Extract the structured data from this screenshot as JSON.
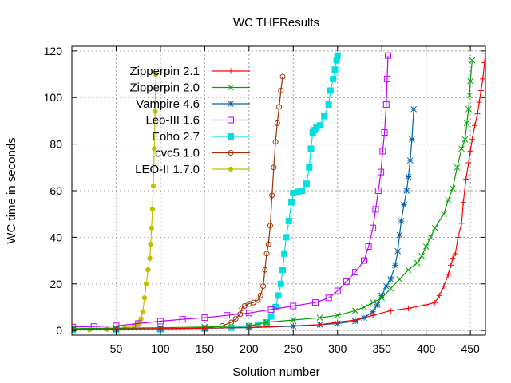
{
  "chart_data": {
    "type": "line",
    "title": "WC THFResults",
    "xlabel": "Solution number",
    "ylabel": "WC time in seconds",
    "xlim": [
      0,
      467
    ],
    "ylim": [
      -2,
      122
    ],
    "xticks": [
      50,
      100,
      150,
      200,
      250,
      300,
      350,
      400,
      450
    ],
    "yticks": [
      0,
      20,
      40,
      60,
      80,
      100,
      120
    ],
    "grid": true,
    "legend_position": "top-left",
    "series": [
      {
        "name": "Zipperpin 2.1",
        "color": "#ff0000",
        "marker": "plus",
        "x": [
          1,
          50,
          100,
          150,
          200,
          250,
          280,
          300,
          320,
          340,
          360,
          380,
          400,
          410,
          415,
          420,
          425,
          428,
          430,
          433,
          436,
          440,
          442,
          445,
          448,
          450,
          452,
          455,
          458,
          460,
          462,
          464,
          466,
          467
        ],
        "y": [
          0.5,
          0.6,
          0.8,
          1.0,
          1.3,
          2.0,
          2.5,
          3.5,
          4.5,
          6.5,
          8.5,
          9.5,
          11,
          12,
          15,
          19,
          24,
          28,
          31,
          33,
          40,
          46,
          55,
          65,
          72,
          77,
          82,
          88,
          93,
          98,
          103,
          108,
          115,
          119
        ]
      },
      {
        "name": "Zipperpin 2.0",
        "color": "#00a000",
        "marker": "x",
        "x": [
          1,
          50,
          100,
          150,
          200,
          220,
          250,
          280,
          300,
          320,
          330,
          340,
          350,
          360,
          370,
          380,
          390,
          395,
          400,
          405,
          410,
          420,
          425,
          430,
          435,
          440,
          444,
          446,
          448,
          449,
          450,
          452
        ],
        "y": [
          0.8,
          1.0,
          1.2,
          1.5,
          2.0,
          3.5,
          4.5,
          5.5,
          6.5,
          8.5,
          10,
          12,
          14,
          18,
          22,
          26,
          29,
          32,
          36,
          40,
          44,
          50,
          56,
          61,
          70,
          78,
          82,
          89,
          95,
          101,
          107,
          116
        ]
      },
      {
        "name": "Vampire 4.6",
        "color": "#0060ad",
        "marker": "star",
        "x": [
          1,
          50,
          100,
          150,
          200,
          250,
          280,
          300,
          320,
          330,
          340,
          345,
          350,
          355,
          360,
          365,
          368,
          370,
          372,
          375,
          378,
          380,
          382,
          384,
          386
        ],
        "y": [
          0.6,
          0.7,
          0.8,
          1.0,
          1.2,
          1.8,
          2.5,
          3.0,
          4.0,
          5.5,
          8,
          11,
          15,
          19,
          22,
          28,
          34,
          41,
          47,
          54,
          60,
          66,
          73,
          82,
          95
        ]
      },
      {
        "name": "Leo-III 1.6",
        "color": "#c000ff",
        "marker": "square",
        "x": [
          1,
          25,
          50,
          75,
          100,
          125,
          150,
          175,
          200,
          225,
          250,
          275,
          290,
          300,
          310,
          320,
          330,
          335,
          340,
          343,
          346,
          349,
          351,
          353,
          355,
          356,
          357
        ],
        "y": [
          1.5,
          1.7,
          2.0,
          3.0,
          4.0,
          4.8,
          5.5,
          6.5,
          7.5,
          9.0,
          10.5,
          12,
          14,
          17,
          21,
          25,
          30,
          36,
          44,
          52,
          60,
          68,
          77,
          85,
          97,
          108,
          118
        ]
      },
      {
        "name": "Eoho 2.7",
        "color": "#00e0e0",
        "marker": "filled-square",
        "x": [
          1,
          50,
          100,
          150,
          180,
          200,
          210,
          220,
          225,
          230,
          233,
          236,
          238,
          240,
          242,
          245,
          248,
          250,
          255,
          260,
          265,
          268,
          270,
          272,
          274,
          276,
          280,
          285,
          290,
          292,
          295,
          297,
          299,
          300
        ],
        "y": [
          0.3,
          0.4,
          0.5,
          0.8,
          1.2,
          1.8,
          2.5,
          3.5,
          6,
          10,
          15,
          20,
          26,
          33,
          40,
          47,
          55,
          59,
          59.5,
          60,
          63,
          70,
          78,
          85,
          86,
          87,
          88,
          92,
          97,
          103,
          108,
          112,
          116,
          118
        ]
      },
      {
        "name": "cvc5 1.0",
        "color": "#a03000",
        "marker": "circle",
        "x": [
          1,
          50,
          100,
          150,
          170,
          180,
          185,
          190,
          192,
          195,
          200,
          205,
          210,
          213,
          216,
          218,
          220,
          222,
          224,
          226,
          228,
          230,
          232,
          234,
          236,
          238
        ],
        "y": [
          0.3,
          0.4,
          0.6,
          1.0,
          2,
          3.5,
          5,
          7,
          9.5,
          10.5,
          11.5,
          12,
          13,
          15,
          19,
          26,
          33,
          37,
          45,
          58,
          70,
          81,
          89,
          96,
          103,
          109
        ]
      },
      {
        "name": "LEO-II 1.7.0",
        "color": "#c0c000",
        "marker": "filled-circle",
        "x": [
          1,
          20,
          40,
          60,
          70,
          75,
          78,
          80,
          82,
          84,
          86,
          88,
          89,
          90,
          91,
          92,
          93,
          94,
          95
        ],
        "y": [
          0.2,
          0.3,
          0.5,
          1.0,
          2,
          3,
          5,
          8,
          14,
          20,
          26,
          31,
          37,
          44,
          52,
          62,
          78,
          94,
          110
        ]
      }
    ]
  }
}
